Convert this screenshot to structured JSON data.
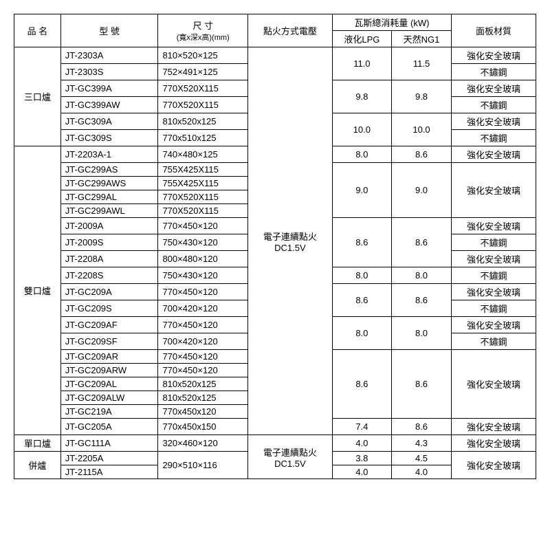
{
  "headers": {
    "name": "品 名",
    "model": "型 號",
    "size": "尺 寸",
    "size_sub": "(寬x深x高)(mm)",
    "ignition": "點火方式電壓",
    "gas": "瓦斯總消耗量 (kW)",
    "lpg": "液化LPG",
    "ng1": "天然NG1",
    "panel": "面板材質"
  },
  "ignition1": "電子連續點火",
  "ignition1b": "DC1.5V",
  "ignition2": "電子連續點火",
  "ignition2b": "DC1.5V",
  "cat": {
    "three": "三口爐",
    "two": "雙口爐",
    "one": "單口爐",
    "combo": "併爐"
  },
  "mat": {
    "glass": "強化安全玻璃",
    "steel": "不鏽鋼"
  },
  "rows": {
    "r1": {
      "model": "JT-2303A",
      "size": "810×520×125"
    },
    "r2": {
      "model": "JT-2303S",
      "size": "752×491×125"
    },
    "r3": {
      "model": "JT-GC399A",
      "size": "770X520X115"
    },
    "r4": {
      "model": "JT-GC399AW",
      "size": "770X520X115"
    },
    "r5": {
      "model": "JT-GC309A",
      "size": "810x520x125"
    },
    "r6": {
      "model": "JT-GC309S",
      "size": "770x510x125"
    },
    "r7": {
      "model": "JT-2203A-1",
      "size": "740×480×125"
    },
    "r8": {
      "model": "JT-GC299AS",
      "size": "755X425X115"
    },
    "r9": {
      "model": "JT-GC299AWS",
      "size": "755X425X115"
    },
    "r10": {
      "model": "JT-GC299AL",
      "size": "770X520X115"
    },
    "r11": {
      "model": "JT-GC299AWL",
      "size": "770X520X115"
    },
    "r12": {
      "model": "JT-2009A",
      "size": "770×450×120"
    },
    "r13": {
      "model": "JT-2009S",
      "size": "750×430×120"
    },
    "r14": {
      "model": "JT-2208A",
      "size": "800×480×120"
    },
    "r15": {
      "model": "JT-2208S",
      "size": "750×430×120"
    },
    "r16": {
      "model": "JT-GC209A",
      "size": "770×450×120"
    },
    "r17": {
      "model": "JT-GC209S",
      "size": "700×420×120"
    },
    "r18": {
      "model": "JT-GC209AF",
      "size": "770×450×120"
    },
    "r19": {
      "model": "JT-GC209SF",
      "size": "700×420×120"
    },
    "r20": {
      "model": "JT-GC209AR",
      "size": "770×450×120"
    },
    "r21": {
      "model": "JT-GC209ARW",
      "size": "770×450×120"
    },
    "r22": {
      "model": "JT-GC209AL",
      "size": "810x520x125"
    },
    "r23": {
      "model": "JT-GC209ALW",
      "size": "810x520x125"
    },
    "r24": {
      "model": "JT-GC219A",
      "size": "770x450x120"
    },
    "r25": {
      "model": "JT-GC205A",
      "size": "770x450x150"
    },
    "r26": {
      "model": "JT-GC111A",
      "size": "320×460×120"
    },
    "r27": {
      "model": "JT-2205A"
    },
    "r28": {
      "model": "JT-2115A"
    },
    "size27": "290×510×116"
  },
  "vals": {
    "v11_0": "11.0",
    "v11_5": "11.5",
    "v9_8": "9.8",
    "v10_0": "10.0",
    "v8_0": "8.0",
    "v8_6": "8.6",
    "v9_0": "9.0",
    "v7_4": "7.4",
    "v4_0": "4.0",
    "v4_3": "4.3",
    "v3_8": "3.8",
    "v4_5": "4.5"
  }
}
